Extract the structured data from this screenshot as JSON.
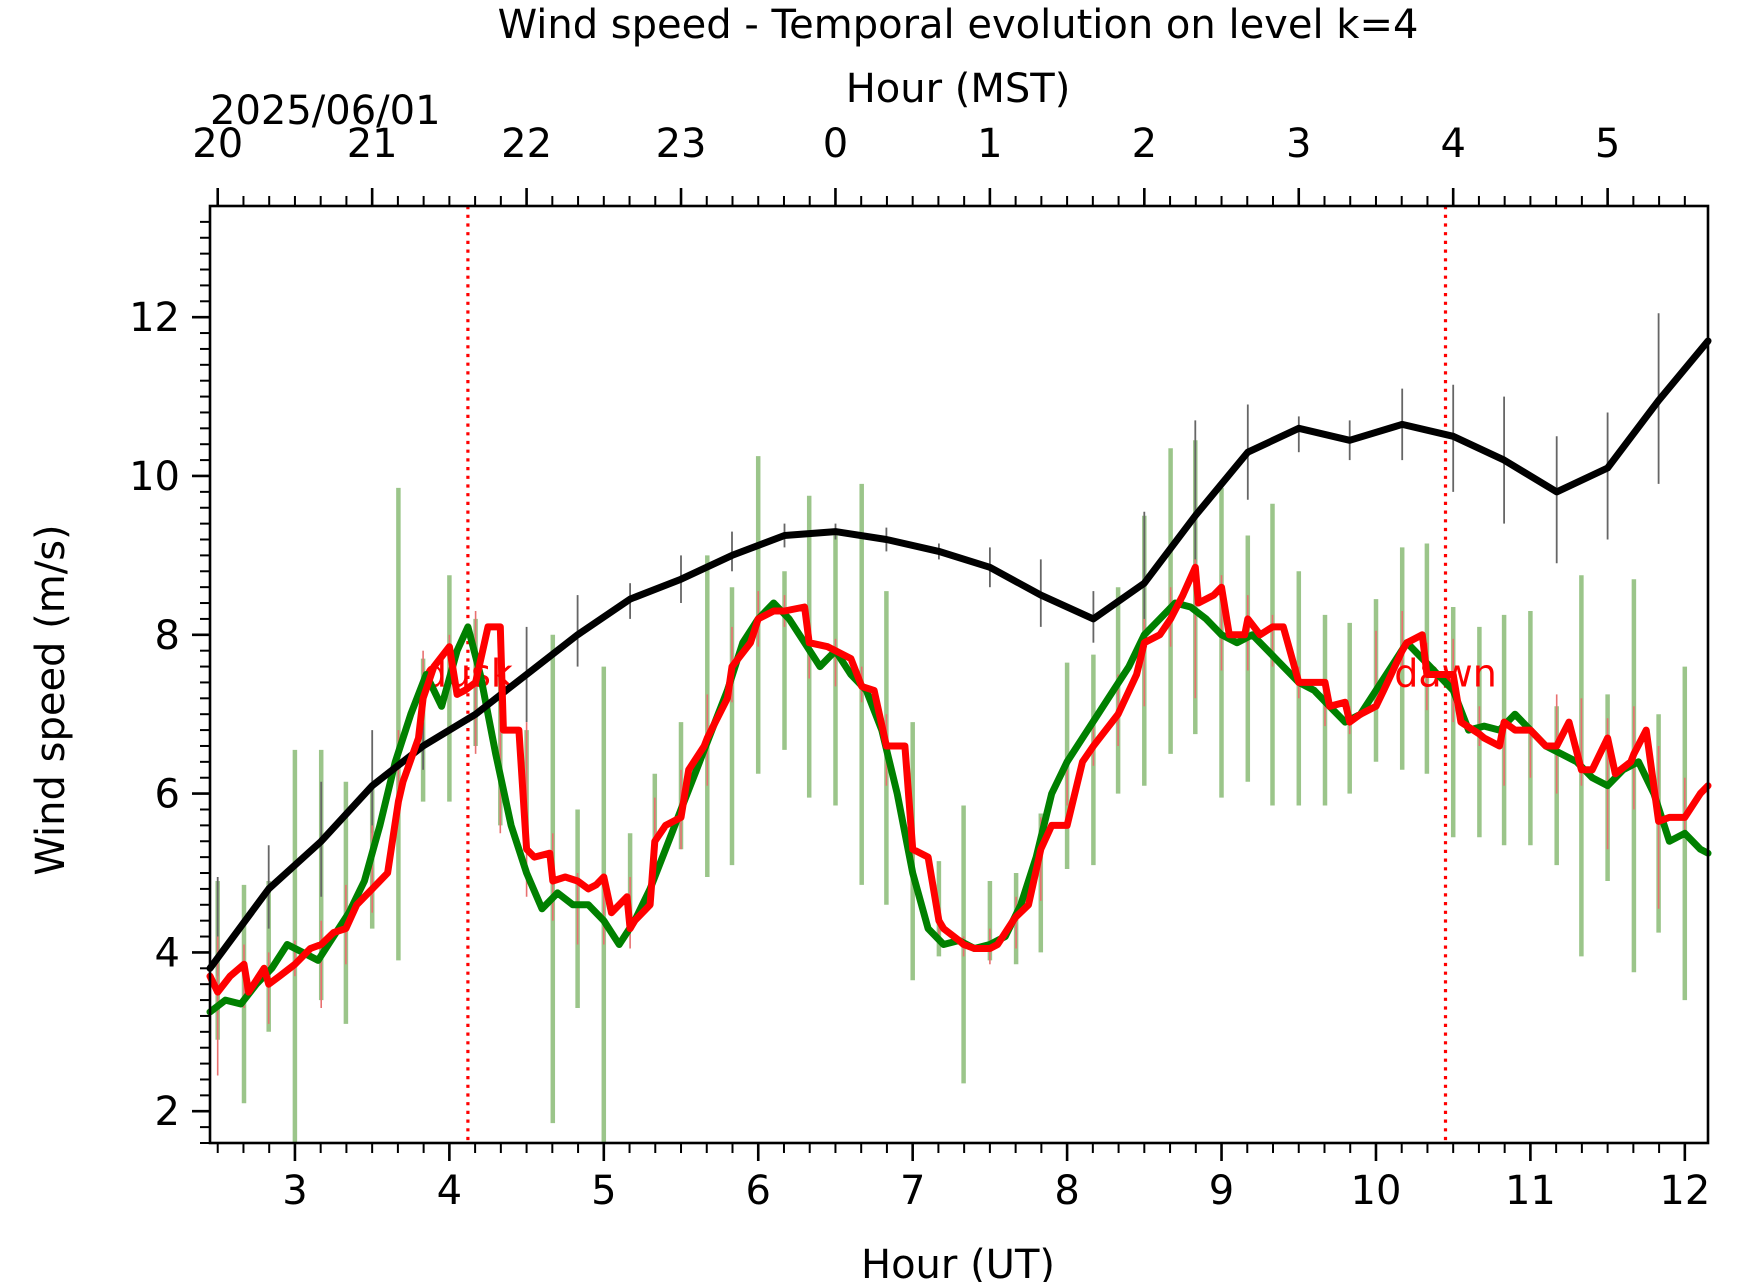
{
  "chart_data": {
    "type": "line",
    "title": "Wind speed - Temporal evolution on level k=4",
    "xlabel": "Hour (UT)",
    "ylabel": "Wind speed (m/s)",
    "top_xlabel": "Hour (MST)",
    "date_label": "2025/06/01",
    "xlim": [
      2.45,
      12.15
    ],
    "ylim": [
      1.6,
      13.4
    ],
    "x_ticks": [
      3,
      4,
      5,
      6,
      7,
      8,
      9,
      10,
      11,
      12
    ],
    "x_tick_labels": [
      "3",
      "4",
      "5",
      "6",
      "7",
      "8",
      "9",
      "10",
      "11",
      "12"
    ],
    "y_ticks": [
      2,
      4,
      6,
      8,
      10,
      12
    ],
    "y_tick_labels": [
      "2",
      "4",
      "6",
      "8",
      "10",
      "12"
    ],
    "top_x_ticks": [
      2.5,
      3.5,
      4.5,
      5.5,
      6.5,
      7.5,
      8.5,
      9.5,
      10.5,
      11.5
    ],
    "top_x_tick_labels": [
      "20",
      "21",
      "22",
      "23",
      "0",
      "1",
      "2",
      "3",
      "4",
      "5"
    ],
    "markers": [
      {
        "x": 4.12,
        "label": "dusk",
        "color": "#ff0000"
      },
      {
        "x": 10.45,
        "label": "dawn",
        "color": "#ff0000"
      }
    ],
    "series": [
      {
        "color": "#000000",
        "width": 7,
        "err_color": "#666666",
        "x": [
          2.45,
          2.83,
          3.17,
          3.5,
          3.83,
          4.17,
          4.5,
          4.83,
          5.17,
          5.5,
          5.83,
          6.17,
          6.5,
          6.83,
          7.17,
          7.5,
          7.83,
          8.17,
          8.5,
          8.83,
          9.17,
          9.5,
          9.83,
          10.17,
          10.5,
          10.83,
          11.17,
          11.5,
          11.83,
          12.15
        ],
        "y": [
          3.8,
          4.8,
          5.4,
          6.1,
          6.6,
          7.0,
          7.5,
          8.0,
          8.45,
          8.7,
          9.0,
          9.25,
          9.3,
          9.2,
          9.05,
          8.85,
          8.5,
          8.2,
          8.65,
          9.5,
          10.3,
          10.6,
          10.45,
          10.65,
          10.5,
          10.2,
          9.8,
          10.1,
          10.95,
          11.7
        ],
        "err_x": [
          2.5,
          2.83,
          3.17,
          3.5,
          3.83,
          4.17,
          4.5,
          4.83,
          5.17,
          5.5,
          5.83,
          6.17,
          6.5,
          6.83,
          7.17,
          7.5,
          7.83,
          8.17,
          8.5,
          8.83,
          9.17,
          9.5,
          9.83,
          10.17,
          10.5,
          10.83,
          11.17,
          11.5,
          11.83
        ],
        "err_lo": [
          3.7,
          4.3,
          4.7,
          5.5,
          6.3,
          6.6,
          6.9,
          7.6,
          8.2,
          8.4,
          8.8,
          9.1,
          9.2,
          9.05,
          8.95,
          8.6,
          8.1,
          7.9,
          7.8,
          8.3,
          9.7,
          10.3,
          10.2,
          10.2,
          9.8,
          9.4,
          8.9,
          9.2,
          9.9
        ],
        "err_hi": [
          4.95,
          5.35,
          6.15,
          6.8,
          6.9,
          7.4,
          8.1,
          8.5,
          8.65,
          9.0,
          9.3,
          9.4,
          9.4,
          9.35,
          9.15,
          9.1,
          8.95,
          8.55,
          9.55,
          10.7,
          10.9,
          10.75,
          10.7,
          11.1,
          11.15,
          11.0,
          10.5,
          10.8,
          12.05
        ]
      },
      {
        "color": "#008000",
        "width": 7,
        "err_color": "#9bc58a",
        "x": [
          2.45,
          2.55,
          2.65,
          2.75,
          2.85,
          2.95,
          3.05,
          3.15,
          3.25,
          3.35,
          3.45,
          3.55,
          3.65,
          3.75,
          3.85,
          3.95,
          4.05,
          4.12,
          4.2,
          4.3,
          4.4,
          4.5,
          4.6,
          4.7,
          4.8,
          4.9,
          5.0,
          5.1,
          5.2,
          5.3,
          5.4,
          5.5,
          5.6,
          5.7,
          5.8,
          5.9,
          6.0,
          6.1,
          6.2,
          6.3,
          6.4,
          6.5,
          6.6,
          6.7,
          6.8,
          6.9,
          7.0,
          7.1,
          7.2,
          7.3,
          7.4,
          7.5,
          7.6,
          7.7,
          7.8,
          7.9,
          8.0,
          8.1,
          8.2,
          8.3,
          8.4,
          8.5,
          8.6,
          8.7,
          8.8,
          8.9,
          9.0,
          9.1,
          9.2,
          9.3,
          9.4,
          9.5,
          9.6,
          9.7,
          9.8,
          9.9,
          10.0,
          10.1,
          10.2,
          10.3,
          10.4,
          10.5,
          10.6,
          10.7,
          10.8,
          10.9,
          11.0,
          11.1,
          11.2,
          11.3,
          11.4,
          11.5,
          11.6,
          11.7,
          11.8,
          11.9,
          12.0,
          12.1,
          12.15
        ],
        "y": [
          3.25,
          3.4,
          3.35,
          3.6,
          3.8,
          4.1,
          4.0,
          3.9,
          4.2,
          4.5,
          4.9,
          5.6,
          6.4,
          7.0,
          7.5,
          7.1,
          7.8,
          8.1,
          7.5,
          6.5,
          5.6,
          5.0,
          4.55,
          4.75,
          4.6,
          4.6,
          4.4,
          4.1,
          4.4,
          4.8,
          5.3,
          5.8,
          6.3,
          6.8,
          7.3,
          7.9,
          8.2,
          8.4,
          8.2,
          7.9,
          7.6,
          7.8,
          7.5,
          7.3,
          6.8,
          6.0,
          5.0,
          4.3,
          4.1,
          4.15,
          4.05,
          4.1,
          4.2,
          4.6,
          5.2,
          6.0,
          6.4,
          6.7,
          7.0,
          7.3,
          7.6,
          8.0,
          8.2,
          8.4,
          8.35,
          8.2,
          8.0,
          7.9,
          8.0,
          7.8,
          7.6,
          7.4,
          7.3,
          7.1,
          6.9,
          7.0,
          7.3,
          7.6,
          7.9,
          7.7,
          7.5,
          7.3,
          6.8,
          6.85,
          6.8,
          7.0,
          6.8,
          6.6,
          6.5,
          6.4,
          6.2,
          6.1,
          6.3,
          6.4,
          6.0,
          5.4,
          5.5,
          5.3,
          5.25
        ],
        "err_x": [
          2.5,
          2.67,
          2.83,
          3.0,
          3.17,
          3.33,
          3.5,
          3.67,
          3.83,
          4.0,
          4.17,
          4.33,
          4.5,
          4.67,
          4.83,
          5.0,
          5.17,
          5.33,
          5.5,
          5.67,
          5.83,
          6.0,
          6.17,
          6.33,
          6.5,
          6.67,
          6.83,
          7.0,
          7.17,
          7.33,
          7.5,
          7.67,
          7.83,
          8.0,
          8.17,
          8.33,
          8.5,
          8.67,
          8.83,
          9.0,
          9.17,
          9.33,
          9.5,
          9.67,
          9.83,
          10.0,
          10.17,
          10.33,
          10.5,
          10.67,
          10.83,
          11.0,
          11.17,
          11.33,
          11.5,
          11.67,
          11.83,
          12.0
        ],
        "err_lo": [
          2.9,
          2.1,
          3.0,
          1.6,
          3.4,
          3.1,
          4.3,
          3.9,
          5.9,
          5.9,
          6.6,
          5.6,
          5.3,
          1.85,
          3.3,
          1.6,
          4.3,
          4.9,
          5.3,
          4.95,
          5.1,
          6.25,
          6.55,
          5.95,
          5.85,
          4.85,
          4.6,
          3.65,
          3.95,
          2.35,
          3.9,
          3.85,
          4.0,
          5.05,
          5.1,
          6.0,
          6.1,
          6.5,
          6.75,
          5.95,
          6.15,
          5.85,
          5.85,
          5.85,
          6.0,
          6.4,
          6.3,
          6.25,
          5.45,
          5.45,
          5.35,
          5.35,
          5.1,
          3.95,
          4.9,
          3.75,
          4.25,
          3.4
        ],
        "err_hi": [
          4.9,
          4.85,
          4.9,
          6.55,
          6.55,
          6.15,
          6.1,
          9.85,
          7.7,
          8.75,
          8.2,
          7.8,
          6.8,
          8.0,
          5.8,
          7.6,
          5.5,
          6.25,
          6.9,
          9.0,
          8.6,
          10.25,
          8.8,
          9.75,
          9.3,
          9.9,
          8.55,
          6.9,
          5.15,
          5.85,
          4.9,
          5.0,
          5.75,
          7.65,
          7.75,
          8.6,
          9.5,
          10.35,
          10.45,
          9.85,
          9.25,
          9.65,
          8.8,
          8.25,
          8.15,
          8.45,
          9.1,
          9.15,
          8.35,
          8.1,
          8.25,
          8.3,
          7.1,
          8.75,
          7.25,
          8.7,
          7.0,
          7.6
        ]
      },
      {
        "color": "#ff0000",
        "width": 7,
        "err_color": "#e87070",
        "x": [
          2.45,
          2.5,
          2.58,
          2.67,
          2.7,
          2.8,
          2.83,
          2.9,
          3.0,
          3.1,
          3.17,
          3.25,
          3.33,
          3.4,
          3.5,
          3.6,
          3.67,
          3.7,
          3.8,
          3.83,
          3.9,
          4.0,
          4.05,
          4.1,
          4.17,
          4.25,
          4.33,
          4.35,
          4.45,
          4.5,
          4.55,
          4.65,
          4.67,
          4.75,
          4.83,
          4.9,
          4.95,
          5.0,
          5.05,
          5.15,
          5.17,
          5.2,
          5.3,
          5.33,
          5.4,
          5.5,
          5.55,
          5.65,
          5.67,
          5.8,
          5.83,
          5.95,
          6.0,
          6.1,
          6.17,
          6.3,
          6.33,
          6.45,
          6.5,
          6.6,
          6.67,
          6.75,
          6.83,
          6.95,
          7.0,
          7.1,
          7.17,
          7.2,
          7.3,
          7.33,
          7.4,
          7.5,
          7.55,
          7.65,
          7.67,
          7.75,
          7.83,
          7.9,
          8.0,
          8.1,
          8.17,
          8.25,
          8.33,
          8.45,
          8.5,
          8.6,
          8.67,
          8.75,
          8.83,
          8.85,
          8.95,
          9.0,
          9.05,
          9.15,
          9.17,
          9.25,
          9.33,
          9.4,
          9.5,
          9.55,
          9.67,
          9.7,
          9.8,
          9.83,
          9.9,
          10.0,
          10.05,
          10.17,
          10.2,
          10.3,
          10.33,
          10.4,
          10.5,
          10.55,
          10.67,
          10.7,
          10.8,
          10.83,
          10.9,
          11.0,
          11.1,
          11.17,
          11.25,
          11.33,
          11.4,
          11.5,
          11.55,
          11.65,
          11.67,
          11.75,
          11.83,
          11.9,
          12.0,
          12.1,
          12.15
        ],
        "y": [
          3.7,
          3.5,
          3.7,
          3.85,
          3.5,
          3.8,
          3.6,
          3.7,
          3.85,
          4.05,
          4.1,
          4.25,
          4.3,
          4.6,
          4.8,
          5.0,
          5.9,
          6.15,
          6.7,
          7.2,
          7.6,
          7.85,
          7.25,
          7.3,
          7.4,
          8.1,
          8.1,
          6.8,
          6.8,
          5.3,
          5.2,
          5.25,
          4.9,
          4.95,
          4.9,
          4.8,
          4.85,
          4.95,
          4.5,
          4.7,
          4.3,
          4.4,
          4.6,
          5.4,
          5.6,
          5.7,
          6.3,
          6.6,
          6.7,
          7.2,
          7.6,
          7.9,
          8.2,
          8.3,
          8.3,
          8.35,
          7.9,
          7.85,
          7.8,
          7.7,
          7.35,
          7.3,
          6.6,
          6.6,
          5.3,
          5.2,
          4.4,
          4.3,
          4.15,
          4.1,
          4.05,
          4.05,
          4.1,
          4.4,
          4.45,
          4.6,
          5.3,
          5.6,
          5.6,
          6.4,
          6.6,
          6.8,
          7.0,
          7.5,
          7.9,
          8.0,
          8.2,
          8.5,
          8.85,
          8.4,
          8.5,
          8.6,
          8.0,
          8.0,
          8.2,
          8.0,
          8.1,
          8.1,
          7.4,
          7.4,
          7.4,
          7.1,
          7.15,
          6.9,
          7.0,
          7.1,
          7.3,
          7.8,
          7.9,
          8.0,
          7.5,
          7.5,
          7.5,
          6.9,
          6.75,
          6.7,
          6.6,
          6.9,
          6.8,
          6.8,
          6.6,
          6.6,
          6.9,
          6.3,
          6.3,
          6.7,
          6.25,
          6.4,
          6.5,
          6.8,
          5.65,
          5.7,
          5.7,
          6.0,
          6.1
        ],
        "err_x": [
          2.5,
          2.67,
          2.83,
          3.0,
          3.17,
          3.33,
          3.5,
          3.67,
          3.83,
          4.0,
          4.17,
          4.33,
          4.5,
          4.67,
          4.83,
          5.0,
          5.17,
          5.33,
          5.5,
          5.67,
          5.83,
          6.0,
          6.17,
          6.33,
          6.5,
          6.67,
          6.83,
          7.0,
          7.17,
          7.33,
          7.5,
          7.67,
          7.83,
          8.0,
          8.17,
          8.33,
          8.5,
          8.67,
          8.83,
          9.0,
          9.17,
          9.33,
          9.5,
          9.67,
          9.83,
          10.0,
          10.17,
          10.33,
          10.5,
          10.67,
          10.83,
          11.0,
          11.17,
          11.33,
          11.5,
          11.67,
          11.83,
          12.0
        ],
        "err_lo": [
          2.45,
          3.3,
          3.1,
          3.7,
          3.3,
          3.85,
          4.5,
          5.7,
          6.9,
          7.4,
          6.5,
          5.5,
          4.7,
          4.4,
          4.1,
          4.1,
          4.05,
          4.9,
          5.3,
          6.1,
          7.15,
          7.85,
          8.1,
          7.45,
          7.35,
          7.15,
          6.1,
          4.85,
          4.2,
          3.95,
          3.85,
          4.05,
          4.65,
          5.85,
          6.35,
          6.6,
          7.1,
          7.85,
          7.2,
          7.55,
          7.55,
          7.6,
          7.2,
          6.85,
          6.75,
          7.3,
          7.6,
          7.05,
          6.9,
          6.6,
          6.1,
          6.2,
          6.0,
          6.1,
          5.3,
          5.8,
          4.55,
          5.5
        ],
        "err_hi": [
          4.2,
          4.1,
          4.0,
          4.15,
          4.4,
          4.85,
          5.6,
          6.8,
          7.8,
          8.0,
          8.3,
          8.05,
          6.9,
          5.5,
          5.0,
          4.9,
          4.95,
          5.95,
          6.3,
          7.25,
          8.1,
          8.55,
          8.5,
          8.15,
          7.95,
          7.6,
          7.0,
          5.7,
          4.55,
          4.2,
          4.3,
          4.7,
          5.7,
          6.45,
          6.95,
          7.5,
          8.2,
          8.6,
          8.95,
          8.75,
          8.5,
          8.25,
          7.6,
          7.4,
          7.1,
          8.05,
          8.3,
          7.9,
          7.95,
          7.1,
          6.9,
          6.85,
          7.25,
          7.2,
          6.95,
          7.1,
          6.6,
          6.2
        ]
      }
    ]
  }
}
